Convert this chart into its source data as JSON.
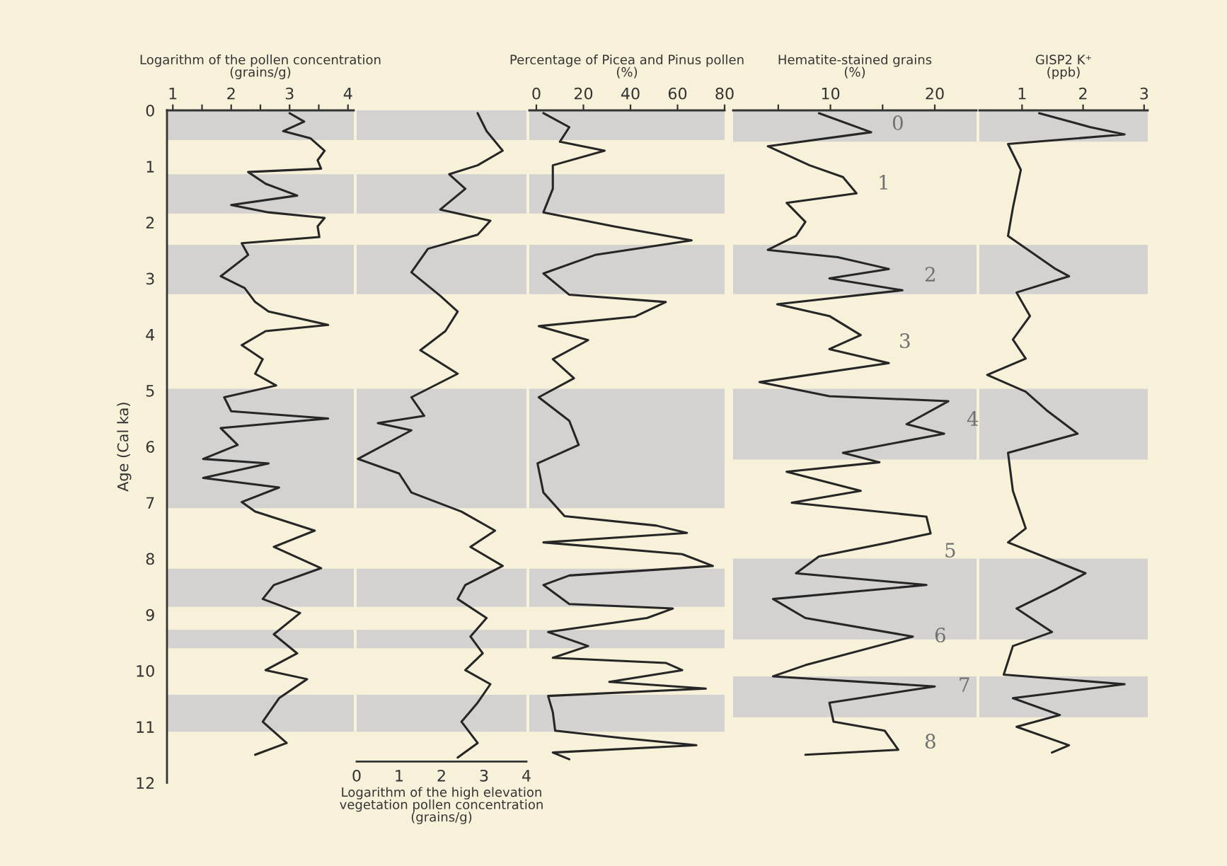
{
  "chart_data": [
    {
      "type": "line",
      "orientation": "horizontal",
      "x2label": "Logarithm of the pollen concentration\n(grains/g)",
      "ylabel": "Age (Cal ka)",
      "x2lim": [
        0.9,
        4.1
      ],
      "x2ticks": [
        1,
        {
          "value": 1.5,
          "label": null
        },
        2,
        {
          "value": 2.5,
          "label": null
        },
        3,
        {
          "value": 3.5,
          "label": null
        },
        4
      ],
      "ylim": [
        12,
        0
      ],
      "yticks": [
        0,
        1,
        2,
        3,
        4,
        5,
        6,
        7,
        8,
        9,
        10,
        11,
        12
      ],
      "grid": false,
      "legend": false,
      "bands": [
        {
          "axis": "y",
          "from": 0,
          "to": 0.53,
          "color": "#d4d2d0"
        },
        {
          "axis": "y",
          "from": 1.14,
          "to": 1.84,
          "color": "#d4d2d0"
        },
        {
          "axis": "y",
          "from": 2.4,
          "to": 3.28,
          "color": "#d4d2d0"
        },
        {
          "axis": "y",
          "from": 4.97,
          "to": 7.1,
          "color": "#d4d2d0"
        },
        {
          "axis": "y",
          "from": 8.18,
          "to": 8.86,
          "color": "#d4d2d0"
        },
        {
          "axis": "y",
          "from": 9.27,
          "to": 9.6,
          "color": "#d4d2d0"
        },
        {
          "axis": "y",
          "from": 10.43,
          "to": 11.09,
          "color": "#d4d2d0"
        }
      ],
      "series": [
        {
          "axis": "x2",
          "color": "#262626",
          "x": [
            0.05,
            0.2,
            0.37,
            0.5,
            0.72,
            0.89,
            1.04,
            1.1,
            1.31,
            1.52,
            1.69,
            1.82,
            1.92,
            2.07,
            2.26,
            2.37,
            2.58,
            2.96,
            3.17,
            3.42,
            3.59,
            3.83,
            3.94,
            4.19,
            4.44,
            4.7,
            4.91,
            5.12,
            5.37,
            5.5,
            5.67,
            5.97,
            6.22,
            6.3,
            6.56,
            6.73,
            6.99,
            7.16,
            7.5,
            7.79,
            8.17,
            8.47,
            8.72,
            8.97,
            9.35,
            9.69,
            9.99,
            10.15,
            10.49,
            10.91,
            11.29,
            11.5
          ],
          "values": [
            3.0,
            3.25,
            2.89,
            3.36,
            3.6,
            3.48,
            3.54,
            2.29,
            2.59,
            3.13,
            2.0,
            2.64,
            3.6,
            3.48,
            3.51,
            2.18,
            2.29,
            1.82,
            2.23,
            2.41,
            2.64,
            3.66,
            2.59,
            2.18,
            2.54,
            2.41,
            2.77,
            1.88,
            2.0,
            3.66,
            1.82,
            2.11,
            1.52,
            2.64,
            1.52,
            2.82,
            2.18,
            2.41,
            3.43,
            2.73,
            3.54,
            2.73,
            2.54,
            3.18,
            2.73,
            3.13,
            2.59,
            3.3,
            2.82,
            2.54,
            2.95,
            2.41
          ]
        }
      ]
    },
    {
      "type": "line",
      "orientation": "horizontal",
      "xlabel": "Logarithm of the high elevation\nvegetation pollen concentration\n(grains/g)",
      "xlim": [
        0,
        4
      ],
      "xticks": [
        0,
        1,
        2,
        3,
        4
      ],
      "ylim": [
        12,
        0
      ],
      "tick_labels": "x",
      "grid": false,
      "legend": false,
      "bands": [
        {
          "axis": "y",
          "from": 0,
          "to": 0.53,
          "color": "#d4d2d0"
        },
        {
          "axis": "y",
          "from": 1.14,
          "to": 1.84,
          "color": "#d4d2d0"
        },
        {
          "axis": "y",
          "from": 2.4,
          "to": 3.28,
          "color": "#d4d2d0"
        },
        {
          "axis": "y",
          "from": 4.97,
          "to": 7.1,
          "color": "#d4d2d0"
        },
        {
          "axis": "y",
          "from": 8.18,
          "to": 8.86,
          "color": "#d4d2d0"
        },
        {
          "axis": "y",
          "from": 9.27,
          "to": 9.6,
          "color": "#d4d2d0"
        },
        {
          "axis": "y",
          "from": 10.43,
          "to": 11.09,
          "color": "#d4d2d0"
        }
      ],
      "series": [
        {
          "color": "#262626",
          "x": [
            0.05,
            0.37,
            0.72,
            0.98,
            1.14,
            1.4,
            1.77,
            1.97,
            2.22,
            2.47,
            2.89,
            3.31,
            3.59,
            3.94,
            4.28,
            4.7,
            5.12,
            5.45,
            5.58,
            5.71,
            6.22,
            6.48,
            6.82,
            7.16,
            7.5,
            7.79,
            8.13,
            8.47,
            8.72,
            9.06,
            9.39,
            9.69,
            9.99,
            10.24,
            10.57,
            10.91,
            11.29,
            11.55
          ],
          "values": [
            2.85,
            3.06,
            3.44,
            2.85,
            2.18,
            2.56,
            1.97,
            3.15,
            2.85,
            1.68,
            1.29,
            1.97,
            2.38,
            2.09,
            1.5,
            2.38,
            1.29,
            1.59,
            0.5,
            1.29,
            0.03,
            1.0,
            1.29,
            2.47,
            3.26,
            2.68,
            3.44,
            2.56,
            2.38,
            3.06,
            2.68,
            2.97,
            2.56,
            3.15,
            2.85,
            2.47,
            2.85,
            2.38
          ]
        }
      ]
    },
    {
      "type": "line",
      "orientation": "horizontal",
      "x2label": "Percentage of Picea and Pinus pollen\n(%)",
      "x2lim": [
        -3,
        80
      ],
      "x2ticks": [
        0,
        20,
        40,
        60,
        80
      ],
      "ylim": [
        12,
        0
      ],
      "tick_labels": "x",
      "grid": false,
      "legend": false,
      "bands": [
        {
          "axis": "y",
          "from": 0,
          "to": 0.53,
          "color": "#d4d2d0"
        },
        {
          "axis": "y",
          "from": 1.14,
          "to": 1.84,
          "color": "#d4d2d0"
        },
        {
          "axis": "y",
          "from": 2.4,
          "to": 3.28,
          "color": "#d4d2d0"
        },
        {
          "axis": "y",
          "from": 4.97,
          "to": 7.1,
          "color": "#d4d2d0"
        },
        {
          "axis": "y",
          "from": 8.18,
          "to": 8.86,
          "color": "#d4d2d0"
        },
        {
          "axis": "y",
          "from": 9.27,
          "to": 9.6,
          "color": "#d4d2d0"
        },
        {
          "axis": "y",
          "from": 10.43,
          "to": 11.09,
          "color": "#d4d2d0"
        }
      ],
      "series": [
        {
          "axis": "x2",
          "color": "#262626",
          "x": [
            0.05,
            0.3,
            0.56,
            0.72,
            0.98,
            1.4,
            1.82,
            2.07,
            2.32,
            2.58,
            2.91,
            3.29,
            3.42,
            3.68,
            3.85,
            4.1,
            4.44,
            4.78,
            5.12,
            5.54,
            5.97,
            6.3,
            6.82,
            7.24,
            7.41,
            7.54,
            7.71,
            7.92,
            8.13,
            8.3,
            8.47,
            8.81,
            8.89,
            9.06,
            9.31,
            9.56,
            9.77,
            9.86,
            9.99,
            10.2,
            10.32,
            10.45,
            10.74,
            11.07,
            11.2,
            11.33,
            11.46,
            11.58
          ],
          "values": [
            3,
            14,
            10,
            29,
            7,
            7,
            3,
            33,
            66,
            25,
            3,
            14,
            55,
            42,
            1,
            22,
            7,
            16,
            1,
            14,
            18,
            0.5,
            3,
            12,
            51,
            64,
            3,
            62,
            75,
            14,
            3,
            14,
            58,
            47,
            5,
            22,
            7,
            55,
            62,
            31,
            72,
            5,
            7,
            8,
            36,
            68,
            7,
            14
          ]
        }
      ]
    },
    {
      "type": "line",
      "orientation": "horizontal",
      "x2label": "Hematite-stained grains\n(%)",
      "x2lim": [
        0.67,
        24
      ],
      "x2ticks": [
        {
          "value": 5,
          "label": null
        },
        10,
        {
          "value": 15,
          "label": null
        },
        20
      ],
      "ylim": [
        12,
        0
      ],
      "tick_labels": "x",
      "grid": false,
      "legend": false,
      "bands": [
        {
          "axis": "y",
          "from": 0,
          "to": 0.56,
          "color": "#d4d2d0"
        },
        {
          "axis": "y",
          "from": 2.4,
          "to": 3.28,
          "color": "#d4d2d0"
        },
        {
          "axis": "y",
          "from": 4.97,
          "to": 6.23,
          "color": "#d4d2d0"
        },
        {
          "axis": "y",
          "from": 8.0,
          "to": 9.44,
          "color": "#d4d2d0"
        },
        {
          "axis": "y",
          "from": 10.1,
          "to": 10.83,
          "color": "#d4d2d0"
        }
      ],
      "annotations": [
        "0",
        "1",
        "2",
        "3",
        "4",
        "5",
        "6",
        "7",
        "8"
      ],
      "series": [
        {
          "axis": "x2",
          "color": "#262626",
          "x": [
            0.05,
            0.39,
            0.64,
            0.98,
            1.19,
            1.48,
            1.65,
            1.99,
            2.24,
            2.49,
            2.62,
            2.83,
            3.0,
            3.21,
            3.46,
            3.67,
            4.01,
            4.26,
            4.51,
            4.85,
            5.1,
            5.19,
            5.6,
            5.77,
            6.11,
            6.28,
            6.45,
            6.79,
            7.0,
            7.25,
            7.55,
            7.71,
            7.96,
            8.26,
            8.47,
            8.72,
            9.06,
            9.39,
            9.9,
            10.1,
            10.28,
            10.57,
            10.91,
            11.07,
            11.41,
            11.5
          ],
          "values": [
            8.9,
            13.9,
            4.0,
            8.0,
            11.2,
            12.5,
            5.8,
            7.6,
            6.7,
            4.0,
            10.7,
            15.6,
            9.9,
            16.9,
            4.9,
            9.9,
            12.9,
            9.9,
            15.6,
            3.2,
            9.9,
            21.3,
            17.3,
            20.9,
            11.2,
            14.7,
            5.8,
            12.9,
            6.3,
            19.2,
            19.6,
            15.6,
            8.9,
            6.7,
            19.2,
            4.5,
            7.6,
            17.9,
            7.6,
            4.5,
            20.0,
            9.9,
            10.3,
            15.2,
            16.5,
            7.6
          ]
        }
      ]
    },
    {
      "type": "line",
      "orientation": "horizontal",
      "x2label": "GISP2 K⁺\n(ppb)",
      "x2lim": [
        0.3,
        3.06
      ],
      "x2ticks": [
        1,
        2,
        3
      ],
      "ylim": [
        12,
        0
      ],
      "tick_labels": "x",
      "grid": false,
      "legend": false,
      "bands": [
        {
          "axis": "y",
          "from": 0,
          "to": 0.56,
          "color": "#d4d2d0"
        },
        {
          "axis": "y",
          "from": 2.4,
          "to": 3.28,
          "color": "#d4d2d0"
        },
        {
          "axis": "y",
          "from": 4.97,
          "to": 6.23,
          "color": "#d4d2d0"
        },
        {
          "axis": "y",
          "from": 8.0,
          "to": 9.44,
          "color": "#d4d2d0"
        },
        {
          "axis": "y",
          "from": 10.1,
          "to": 10.83,
          "color": "#d4d2d0"
        }
      ],
      "series": [
        {
          "axis": "x2",
          "color": "#262626",
          "x": [
            0.05,
            0.3,
            0.43,
            0.6,
            1.06,
            1.74,
            2.24,
            2.83,
            2.96,
            3.25,
            3.67,
            4.09,
            4.43,
            4.72,
            5.02,
            5.35,
            5.77,
            6.11,
            6.79,
            7.46,
            7.71,
            8.26,
            8.55,
            8.89,
            9.31,
            9.56,
            10.07,
            10.24,
            10.49,
            10.79,
            11.0,
            11.33,
            11.46
          ],
          "values": [
            1.28,
            2.12,
            2.68,
            0.77,
            0.98,
            0.85,
            0.77,
            1.55,
            1.77,
            0.91,
            1.13,
            0.85,
            1.06,
            0.43,
            1.06,
            1.4,
            1.91,
            0.77,
            0.85,
            1.06,
            0.77,
            2.04,
            1.55,
            0.91,
            1.49,
            0.85,
            0.7,
            2.68,
            0.85,
            1.62,
            0.91,
            1.77,
            1.49
          ]
        }
      ]
    }
  ]
}
